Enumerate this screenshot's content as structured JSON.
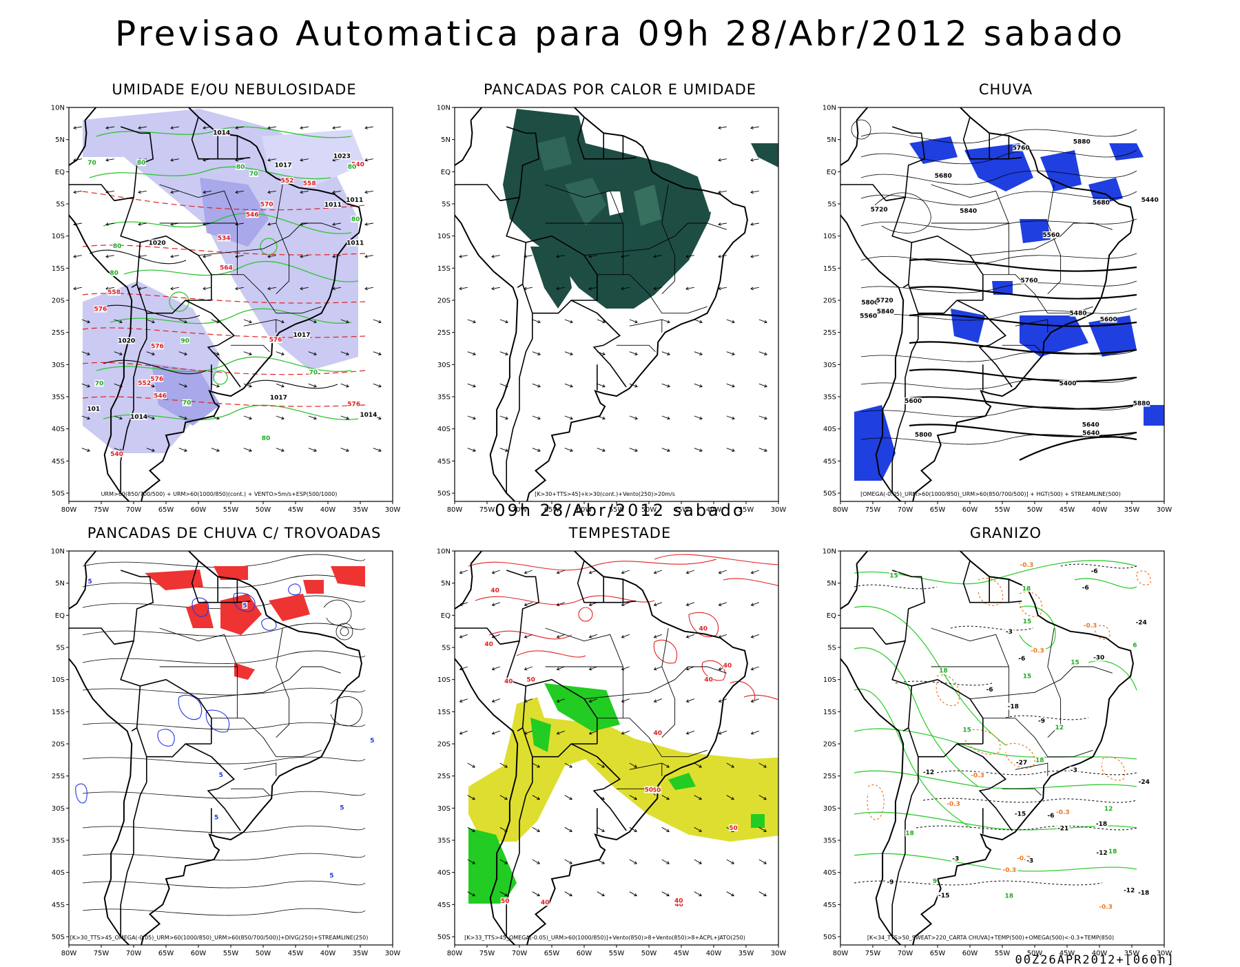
{
  "title": "Previsao Automatica para 09h 28/Abr/2012 sabado",
  "mid_title": "09h 28/Abr/2012 sabado",
  "footer": "00Z26APR2012+[060h]",
  "lat_labels": [
    "10N",
    "5N",
    "EQ",
    "5S",
    "10S",
    "15S",
    "20S",
    "25S",
    "30S",
    "35S",
    "40S",
    "45S",
    "50S"
  ],
  "lon_labels": [
    "80W",
    "75W",
    "70W",
    "65W",
    "60W",
    "55W",
    "50W",
    "45W",
    "40W",
    "35W",
    "30W"
  ],
  "panels": [
    {
      "title": "UMIDADE E/OU NEBULOSIDADE",
      "caption": "URM>60(850/700/500) + URM>60(1000/850)(cont.) + VENTO>5m/s+ESP(500/1000)",
      "colors": [
        "#b8b8f0",
        "#33cc33",
        "#e02020"
      ]
    },
    {
      "title": "PANCADAS POR CALOR E UMIDADE",
      "caption": "[K>30+TTS>45]+k>30(cont.)+Vento(250)>20m/s",
      "colors": [
        "#1e4d44"
      ]
    },
    {
      "title": "CHUVA",
      "caption": "[OMEGA(-0.05)_URM>60(1000/850)_URM>60(850/700/500)] + HGT(500) + STREAMLINE(500)",
      "colors": [
        "#1f3fe0"
      ]
    },
    {
      "title": "PANCADAS DE CHUVA C/ TROVOADAS",
      "caption": "[K>30_TTS>45_OMEGA(-0.05)_URM>60(1000/850)_URM>60(850/700/500)]+DIVG(250)+STREAMLINE(250)",
      "colors": [
        "#ee3333",
        "#2233dd"
      ]
    },
    {
      "title": "TEMPESTADE",
      "caption": "[K>33_TTS>45_OMEGA(-0.05)_URM>60(1000/850)]+Vento(850)>8+Vento(850)>8+ACPL+JATO(250)",
      "colors": [
        "#dede30",
        "#22cc22",
        "#e02020"
      ]
    },
    {
      "title": "GRANIZO",
      "caption": "[K<34_TTS>50_SWEAT>220_CARTA CHUVA]+TEMP(500)+OMEGA(500)<-0.3+TEMP(850)",
      "colors": [
        "#33cc33",
        "#ee7722"
      ]
    }
  ],
  "contour_labels": {
    "p1": [
      "576",
      "576",
      "576",
      "576",
      "576",
      "570",
      "564",
      "558",
      "552",
      "546",
      "540",
      "552",
      "546",
      "540",
      "534",
      "558",
      "1011",
      "1011",
      "1014",
      "1017",
      "1017",
      "1020",
      "1023",
      "1020",
      "1014",
      "1017",
      "1011",
      "101",
      "1014",
      "70",
      "80",
      "70",
      "80",
      "80",
      "70",
      "80",
      "70",
      "80",
      "90",
      "70",
      "80",
      "80"
    ],
    "p3": [
      "5880",
      "5840",
      "5800",
      "5760",
      "5720",
      "5680",
      "5640",
      "5600",
      "5560",
      "5560",
      "5840",
      "5800",
      "5760",
      "5720",
      "5680",
      "5640",
      "5600",
      "5480",
      "5440",
      "5400",
      "5880"
    ],
    "p4": [
      "5",
      "5",
      "5",
      "5",
      "5",
      "5",
      "5"
    ],
    "p5": [
      "40",
      "40",
      "40",
      "50",
      "50",
      "40",
      "40",
      "50",
      "40",
      "40",
      "40",
      "40",
      "50",
      "40",
      "50"
    ],
    "p6": [
      "18",
      "18",
      "15",
      "18",
      "-6",
      "-6",
      "-6",
      "-3",
      "18",
      "-0.3",
      "-0.3",
      "-0.3",
      "-0.3",
      "-0.3",
      "-0.3",
      "-0.3",
      "-0.3",
      "15",
      "15",
      "12",
      "-12",
      "-9",
      "-12",
      "-15",
      "-12",
      "-15",
      "-18",
      "-21",
      "-24",
      "-24",
      "-27",
      "-30",
      "-18",
      "-3",
      "-6",
      "12",
      "15",
      "18",
      "6",
      "-0.3",
      "-3",
      "-3",
      "-6",
      "9",
      "-9",
      "15",
      "18",
      "-18"
    ]
  }
}
